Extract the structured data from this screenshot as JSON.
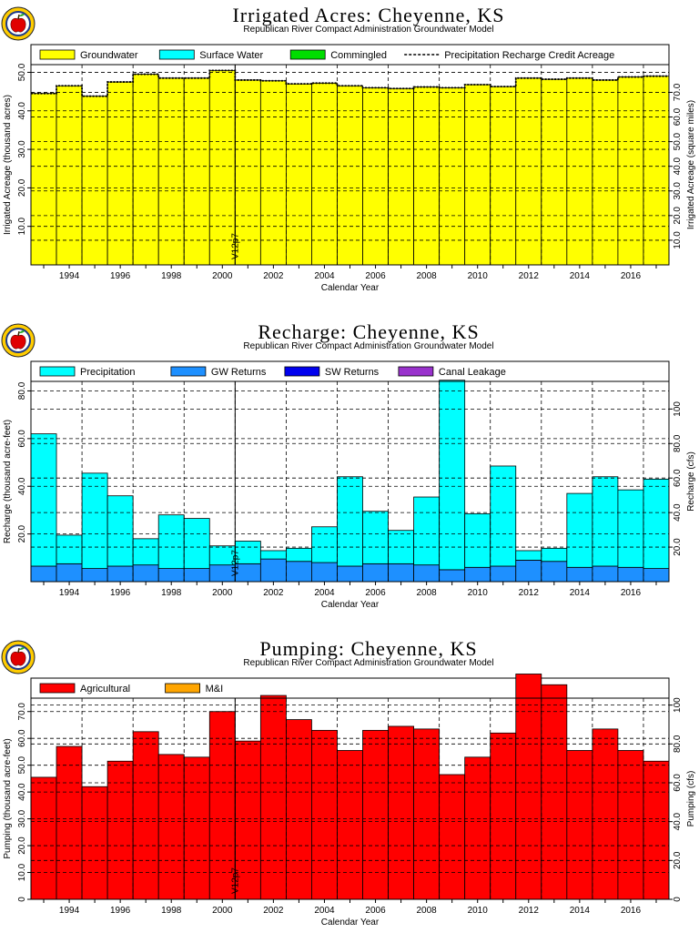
{
  "chart_data": [
    {
      "type": "bar",
      "title": "Irrigated Acres: Cheyenne, KS",
      "subtitle": "Republican River Compact Administration Groundwater Model",
      "xlabel": "Calendar Year",
      "ylabel": "Irrigated Acreage (thousand acres)",
      "ylabel_right": "Irrigated Acreage (square miles)",
      "ylim": [
        0,
        52
      ],
      "yticks": [
        "10.0",
        "20.0",
        "30.0",
        "40.0",
        "50.0"
      ],
      "right_yticks": [
        "10.0",
        "20.0",
        "30.0",
        "40.0",
        "50.0",
        "60.0",
        "70.0"
      ],
      "right_scale": 1.5625,
      "xticks": [
        "1994",
        "1996",
        "1998",
        "2000",
        "2002",
        "2004",
        "2006",
        "2008",
        "2010",
        "2012",
        "2014",
        "2016"
      ],
      "years": [
        1993,
        1994,
        1995,
        1996,
        1997,
        1998,
        1999,
        2000,
        2001,
        2002,
        2003,
        2004,
        2005,
        2006,
        2007,
        2008,
        2009,
        2010,
        2011,
        2012,
        2013,
        2014,
        2015,
        2016,
        2017
      ],
      "marker_label": "V12p7",
      "marker_year": 2000.5,
      "grid": true,
      "legend_position": "top",
      "series": [
        {
          "name": "Groundwater",
          "color": "#ffff00",
          "values": [
            44.5,
            46.5,
            43.8,
            47.5,
            49.5,
            48.5,
            48.5,
            50.5,
            48.0,
            47.8,
            47.0,
            47.2,
            46.5,
            46.0,
            45.8,
            46.2,
            46.0,
            46.8,
            46.3,
            48.5,
            48.2,
            48.5,
            48.0,
            48.8,
            49.0
          ]
        },
        {
          "name": "Surface Water",
          "color": "#00ffff",
          "values": [
            0,
            0,
            0,
            0,
            0,
            0,
            0,
            0,
            0,
            0,
            0,
            0,
            0,
            0,
            0,
            0,
            0,
            0,
            0,
            0,
            0,
            0,
            0,
            0,
            0
          ]
        },
        {
          "name": "Commingled",
          "color": "#00dd00",
          "values": [
            0,
            0,
            0,
            0,
            0,
            0,
            0,
            0,
            0,
            0,
            0,
            0,
            0,
            0,
            0,
            0,
            0,
            0,
            0,
            0,
            0,
            0,
            0,
            0,
            0
          ]
        }
      ],
      "line_series": {
        "name": "Precipitation Recharge Credit Acreage",
        "values": [
          44.5,
          46.5,
          43.8,
          47.5,
          49.5,
          48.5,
          48.5,
          50.5,
          48.0,
          47.8,
          47.0,
          47.2,
          46.5,
          46.0,
          45.8,
          46.2,
          46.0,
          46.8,
          46.3,
          48.5,
          48.2,
          48.5,
          48.0,
          48.8,
          49.0
        ]
      },
      "icon": "apple-logo-icon"
    },
    {
      "type": "bar",
      "title": "Recharge: Cheyenne, KS",
      "subtitle": "Republican River Compact Administration Groundwater Model",
      "xlabel": "Calendar Year",
      "ylabel": "Recharge (thousand acre-feet)",
      "ylabel_right": "Recharge (cfs)",
      "ylim": [
        0,
        84
      ],
      "yticks": [
        "20.0",
        "40.0",
        "60.0",
        "80.0"
      ],
      "right_yticks": [
        "20.0",
        "40.0",
        "60.0",
        "80.0",
        "100"
      ],
      "right_scale": 1.381,
      "xticks": [
        "1994",
        "1996",
        "1998",
        "2000",
        "2002",
        "2004",
        "2006",
        "2008",
        "2010",
        "2012",
        "2014",
        "2016"
      ],
      "years": [
        1993,
        1994,
        1995,
        1996,
        1997,
        1998,
        1999,
        2000,
        2001,
        2002,
        2003,
        2004,
        2005,
        2006,
        2007,
        2008,
        2009,
        2010,
        2011,
        2012,
        2013,
        2014,
        2015,
        2016,
        2017
      ],
      "marker_label": "V12p7",
      "marker_year": 2000.5,
      "grid": true,
      "legend_position": "top",
      "series": [
        {
          "name": "GW Returns",
          "color": "#1e90ff",
          "values": [
            6.5,
            7.5,
            5.5,
            6.5,
            7.0,
            5.5,
            5.5,
            7.0,
            7.5,
            9.5,
            8.5,
            8.0,
            6.5,
            7.5,
            7.5,
            7.0,
            5.0,
            6.0,
            6.5,
            9.0,
            8.5,
            6.0,
            6.5,
            6.0,
            5.5
          ]
        },
        {
          "name": "Precipitation",
          "color": "#00ffff",
          "values": [
            55.5,
            12.0,
            40.0,
            29.5,
            11.0,
            22.5,
            21.0,
            8.0,
            9.5,
            3.5,
            5.5,
            15.0,
            37.5,
            22.0,
            14.0,
            28.5,
            79.5,
            22.5,
            42.0,
            4.0,
            5.5,
            31.0,
            37.5,
            32.5,
            37.5
          ]
        },
        {
          "name": "SW Returns",
          "color": "#0000ee",
          "values": [
            0,
            0,
            0,
            0,
            0,
            0,
            0,
            0,
            0,
            0,
            0,
            0,
            0,
            0,
            0,
            0,
            0,
            0,
            0,
            0,
            0,
            0,
            0,
            0,
            0
          ]
        },
        {
          "name": "Canal Leakage",
          "color": "#9932cc",
          "values": [
            0,
            0,
            0,
            0,
            0,
            0,
            0,
            0,
            0,
            0,
            0,
            0,
            0,
            0,
            0,
            0,
            0,
            0,
            0,
            0,
            0,
            0,
            0,
            0,
            0
          ]
        }
      ],
      "legend_order": [
        "Precipitation",
        "GW Returns",
        "SW Returns",
        "Canal Leakage"
      ],
      "icon": "apple-logo-icon"
    },
    {
      "type": "bar",
      "title": "Pumping: Cheyenne, KS",
      "subtitle": "Republican River Compact Administration Groundwater Model",
      "xlabel": "Calendar Year",
      "ylabel": "Pumping (thousand acre-feet)",
      "ylabel_right": "Pumping (cfs)",
      "ylim": [
        0,
        75
      ],
      "yticks": [
        "0",
        "10.0",
        "20.0",
        "30.0",
        "40.0",
        "50.0",
        "60.0",
        "70.0"
      ],
      "right_yticks": [
        "0",
        "20.0",
        "40.0",
        "60.0",
        "80.0",
        "100"
      ],
      "right_scale": 1.381,
      "xticks": [
        "1994",
        "1996",
        "1998",
        "2000",
        "2002",
        "2004",
        "2006",
        "2008",
        "2010",
        "2012",
        "2014",
        "2016"
      ],
      "years": [
        1993,
        1994,
        1995,
        1996,
        1997,
        1998,
        1999,
        2000,
        2001,
        2002,
        2003,
        2004,
        2005,
        2006,
        2007,
        2008,
        2009,
        2010,
        2011,
        2012,
        2013,
        2014,
        2015,
        2016,
        2017
      ],
      "marker_label": "V12p7",
      "marker_year": 2000.5,
      "grid": true,
      "legend_position": "top",
      "series": [
        {
          "name": "Agricultural",
          "color": "#ff0000",
          "values": [
            45.5,
            57.0,
            42.0,
            51.5,
            62.5,
            54.0,
            53.0,
            70.0,
            59.0,
            76.0,
            67.0,
            63.0,
            55.5,
            63.0,
            64.5,
            63.5,
            46.5,
            53.0,
            62.0,
            84.0,
            80.0,
            55.5,
            63.5,
            55.5,
            51.5
          ]
        },
        {
          "name": "M&I",
          "color": "#ffa500",
          "values": [
            0,
            0,
            0,
            0,
            0,
            0,
            0,
            0,
            0,
            0,
            0,
            0,
            0,
            0,
            0,
            0,
            0,
            0,
            0,
            0,
            0,
            0,
            0,
            0,
            0
          ]
        }
      ],
      "icon": "apple-logo-icon"
    }
  ]
}
